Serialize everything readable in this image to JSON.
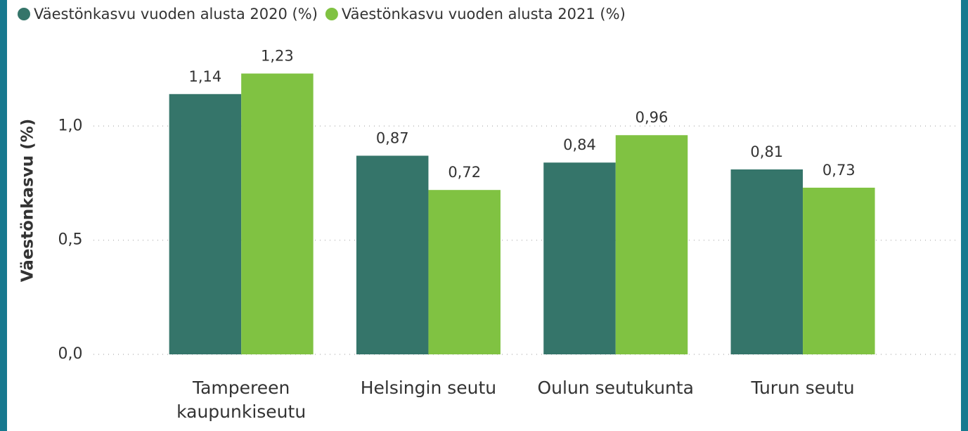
{
  "chart_data": {
    "type": "bar",
    "y_label": "Väestönkasvu (%)",
    "categories": [
      "Tampereen kaupunkiseutu",
      "Helsingin seutu",
      "Oulun seutukunta",
      "Turun seutu"
    ],
    "series": [
      {
        "name": "Väestönkasvu vuoden alusta 2020 (%)",
        "color": "#35756a",
        "values": [
          1.14,
          0.87,
          0.84,
          0.81
        ],
        "value_labels": [
          "1,14",
          "0,87",
          "0,84",
          "0,81"
        ]
      },
      {
        "name": "Väestönkasvu vuoden alusta 2021 (%)",
        "color": "#80c242",
        "values": [
          1.23,
          0.72,
          0.96,
          0.73
        ],
        "value_labels": [
          "1,23",
          "0,72",
          "0,96",
          "0,73"
        ]
      }
    ],
    "ylim": [
      0,
      1.35
    ],
    "yticks": [
      {
        "value": 0,
        "label": "0,0"
      },
      {
        "value": 0.5,
        "label": "0,5"
      },
      {
        "value": 1,
        "label": "1,0"
      }
    ],
    "grid": true,
    "legend": "top-left"
  }
}
